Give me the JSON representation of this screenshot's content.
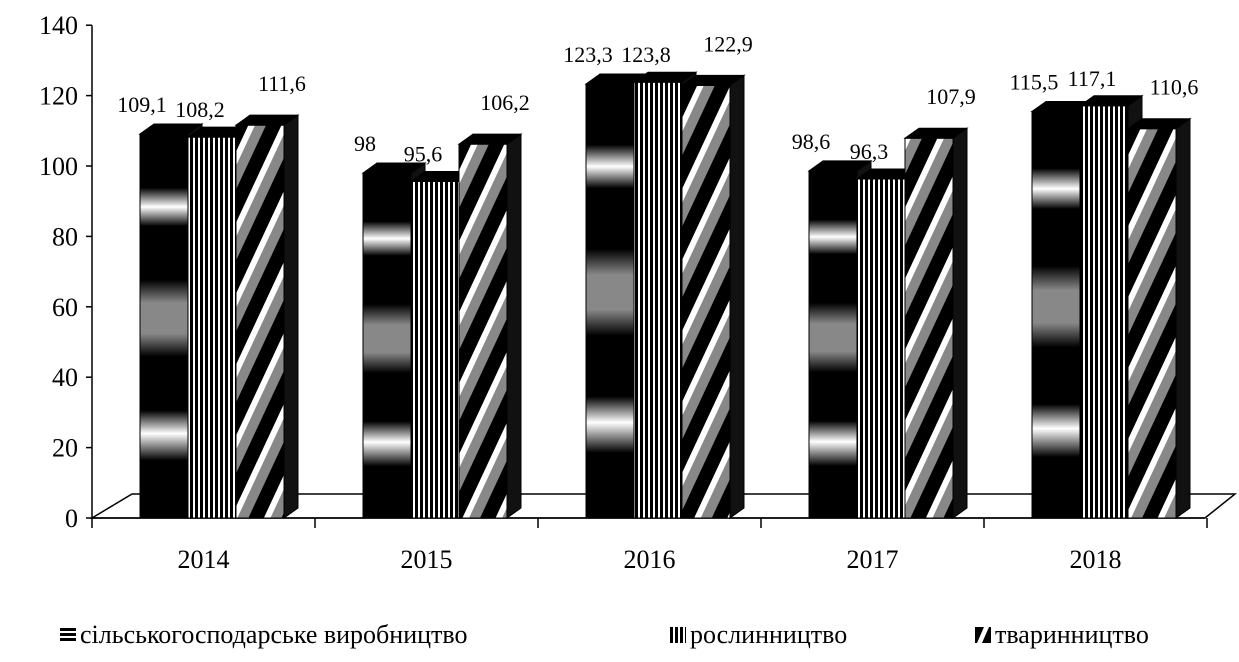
{
  "chart_data": {
    "type": "bar",
    "title": "",
    "xlabel": "",
    "ylabel": "",
    "ylim": [
      0,
      140
    ],
    "yticks": [
      0,
      20,
      40,
      60,
      80,
      100,
      120,
      140
    ],
    "ytick_labels": [
      "0",
      "20",
      "40",
      "60",
      "80",
      "100",
      "120",
      "140"
    ],
    "categories": [
      "2014",
      "2015",
      "2016",
      "2017",
      "2018"
    ],
    "series": [
      {
        "name": "сільськогосподарське виробництво",
        "values": [
          109.1,
          98,
          123.3,
          98.6,
          115.5
        ],
        "labels": [
          "109,1",
          "98",
          "123,3",
          "98,6",
          "115,5"
        ]
      },
      {
        "name": "рослинництво",
        "values": [
          108.2,
          95.6,
          123.8,
          96.3,
          117.1
        ],
        "labels": [
          "108,2",
          "95,6",
          "123,8",
          "96,3",
          "117,1"
        ]
      },
      {
        "name": "тваринництво",
        "values": [
          111.6,
          106.2,
          122.9,
          107.9,
          110.6
        ],
        "labels": [
          "111,6",
          "106,2",
          "122,9",
          "107,9",
          "110,6"
        ]
      }
    ],
    "legend_position": "bottom",
    "grid": false,
    "style": "3d-clustered-column"
  },
  "legend": {
    "items": [
      {
        "label": "сільськогосподарське виробництво"
      },
      {
        "label": "рослинництво"
      },
      {
        "label": "тваринництво"
      }
    ]
  }
}
